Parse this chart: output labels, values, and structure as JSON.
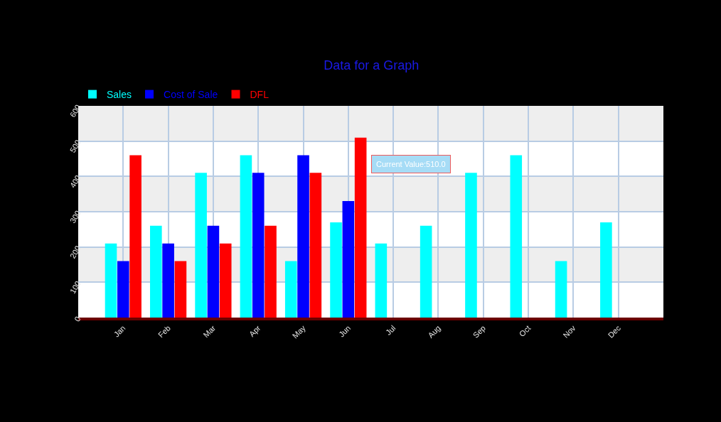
{
  "chart_data": {
    "type": "bar",
    "title": "Data for a Graph",
    "categories": [
      "Jan",
      "Feb",
      "Mar",
      "Apr",
      "May",
      "Jun",
      "Jul",
      "Aug",
      "Sep",
      "Oct",
      "Nov",
      "Dec"
    ],
    "series": [
      {
        "name": "Sales",
        "color": "#00ffff",
        "values": [
          210,
          260,
          410,
          460,
          160,
          270,
          210,
          260,
          410,
          460,
          160,
          270
        ]
      },
      {
        "name": "Cost of Sale",
        "color": "#0000ff",
        "values": [
          160,
          210,
          260,
          410,
          460,
          330,
          null,
          null,
          null,
          null,
          null,
          null
        ]
      },
      {
        "name": "DFL",
        "color": "#ff0000",
        "values": [
          460,
          160,
          210,
          260,
          410,
          510,
          null,
          null,
          null,
          null,
          null,
          null
        ]
      }
    ],
    "ylim": [
      0,
      600
    ],
    "yticks": [
      0,
      100,
      200,
      300,
      400,
      500,
      600
    ],
    "grid": true,
    "legend": "top left",
    "bands": [
      {
        "axis": "y",
        "from": 100,
        "to": 200,
        "color": "#eeeeee"
      },
      {
        "axis": "y",
        "from": 300,
        "to": 400,
        "color": "#eeeeee"
      },
      {
        "axis": "y",
        "from": 500,
        "to": 600,
        "color": "#eeeeee"
      }
    ],
    "annotations": [
      "Current Value:510.0"
    ]
  }
}
